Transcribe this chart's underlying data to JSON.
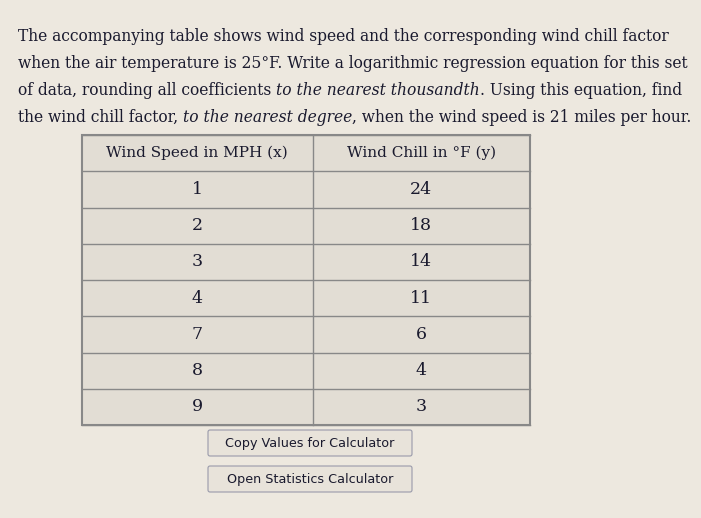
{
  "lines_segments": [
    [
      [
        "The accompanying table shows wind speed and the corresponding wind chill factor",
        "normal"
      ]
    ],
    [
      [
        "when the air temperature is 25°F. Write a logarithmic regression equation for this set",
        "normal"
      ]
    ],
    [
      [
        "of data, rounding all coefficients ",
        "normal"
      ],
      [
        "to the nearest thousandth",
        "italic"
      ],
      [
        ". Using this equation, find",
        "normal"
      ]
    ],
    [
      [
        "the wind chill factor, ",
        "normal"
      ],
      [
        "to the nearest degree",
        "italic"
      ],
      [
        ", when the wind speed is 21 miles per hour.",
        "normal"
      ]
    ]
  ],
  "col1_header": "Wind Speed in MPH (x)",
  "col2_header": "Wind Chill in °F (y)",
  "rows": [
    [
      1,
      24
    ],
    [
      2,
      18
    ],
    [
      3,
      14
    ],
    [
      4,
      11
    ],
    [
      7,
      6
    ],
    [
      8,
      4
    ],
    [
      9,
      3
    ]
  ],
  "button1": "Copy Values for Calculator",
  "button2": "Open Statistics Calculator",
  "bg_color": "#ede8df",
  "table_bg": "#e2ddd4",
  "table_border": "#888888",
  "header_bg": "#e2ddd4",
  "button_bg": "#e8e3da",
  "button_border": "#9999aa",
  "text_color": "#1a1a2e",
  "font_size_para": 11.2,
  "font_size_table_header": 11.0,
  "font_size_table_data": 12.5,
  "font_size_button": 9.2
}
